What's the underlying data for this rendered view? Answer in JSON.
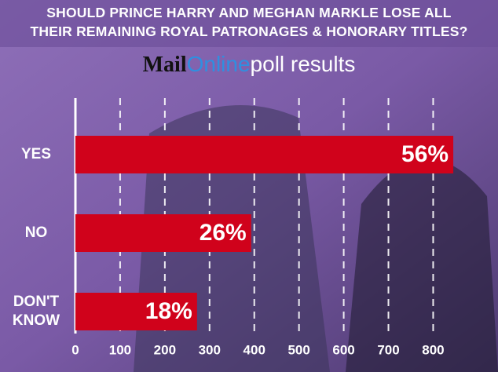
{
  "chart_data": {
    "type": "bar",
    "orientation": "horizontal",
    "title_lines": [
      "SHOULD PRINCE HARRY AND MEGHAN MARKLE LOSE ALL",
      "THEIR REMAINING ROYAL PATRONAGES & HONORARY TITLES?"
    ],
    "logo": {
      "mail": "Mail",
      "online": "Online"
    },
    "subtitle": "poll results",
    "categories": [
      "YES",
      "NO",
      "DON'T KNOW"
    ],
    "values": [
      845,
      393,
      272
    ],
    "value_labels": [
      "56%",
      "26%",
      "18%"
    ],
    "color": "#d0021b",
    "xlim": [
      0,
      945
    ],
    "xticks": [
      0,
      100,
      200,
      300,
      400,
      500,
      600,
      700,
      800
    ],
    "grid": true
  }
}
